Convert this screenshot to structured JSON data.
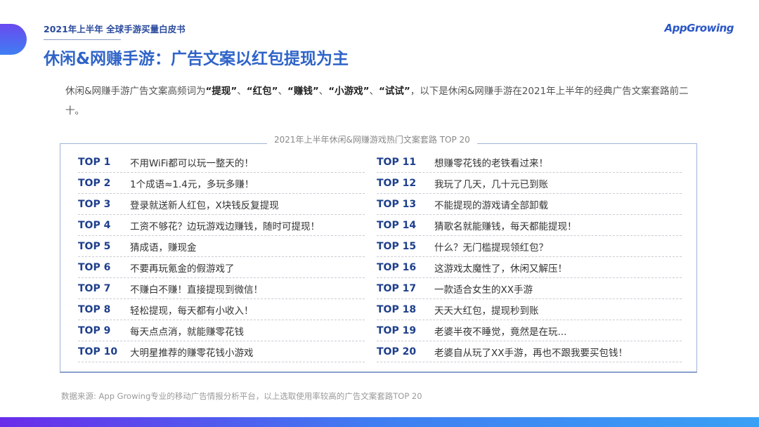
{
  "header": {
    "supertitle": "2021年上半年 全球手游买量白皮书",
    "logo": "AppGrowing",
    "title": "休闲&网赚手游：广告文案以红包提现为主"
  },
  "intro": {
    "prefix": "休闲&网赚手游广告文案高频词为",
    "keywords": [
      "“提现”",
      "“红包”",
      "“赚钱”",
      "“小游戏”",
      "“试试”"
    ],
    "separator": "、",
    "suffix": "，以下是休闲&网赚手游在2021年上半年的经典广告文案套路前二十。"
  },
  "table": {
    "title": "2021年上半年休闲&网赚游戏热门文案套路 TOP 20",
    "left": [
      {
        "rank": "TOP 1",
        "text": "不用WiFi都可以玩一整天的！"
      },
      {
        "rank": "TOP 2",
        "text": "1个成语≈1.4元，多玩多赚！"
      },
      {
        "rank": "TOP 3",
        "text": "登录就送新人红包，X块钱反复提现"
      },
      {
        "rank": "TOP 4",
        "text": "工资不够花？边玩游戏边赚钱，随时可提现！"
      },
      {
        "rank": "TOP 5",
        "text": "猜成语，赚现金"
      },
      {
        "rank": "TOP 6",
        "text": "不要再玩氪金的假游戏了"
      },
      {
        "rank": "TOP 7",
        "text": "不赚白不赚！直接提现到微信！"
      },
      {
        "rank": "TOP 8",
        "text": "轻松提现，每天都有小收入！"
      },
      {
        "rank": "TOP 9",
        "text": "每天点点消，就能赚零花钱"
      },
      {
        "rank": "TOP 10",
        "text": "大明星推荐的赚零花钱小游戏"
      }
    ],
    "right": [
      {
        "rank": "TOP 11",
        "text": "想赚零花钱的老铁看过来！"
      },
      {
        "rank": "TOP 12",
        "text": "我玩了几天，几十元已到账"
      },
      {
        "rank": "TOP 13",
        "text": "不能提现的游戏请全部卸载"
      },
      {
        "rank": "TOP 14",
        "text": "猜歌名就能赚钱，每天都能提现！"
      },
      {
        "rank": "TOP 15",
        "text": "什么？无门槛提现领红包？"
      },
      {
        "rank": "TOP 16",
        "text": "这游戏太魔性了，休闲又解压！"
      },
      {
        "rank": "TOP 17",
        "text": "一款适合女生的XX手游"
      },
      {
        "rank": "TOP 18",
        "text": "天天大红包，提现秒到账"
      },
      {
        "rank": "TOP 19",
        "text": "老婆半夜不睡觉，竟然是在玩..."
      },
      {
        "rank": "TOP 20",
        "text": "老婆自从玩了XX手游，再也不跟我要买包钱！"
      }
    ]
  },
  "footer": {
    "source": "数据来源: App Growing专业的移动广告情报分析平台，以上选取使用率较高的广告文案套路TOP 20"
  },
  "colors": {
    "accent": "#2f64c8",
    "rank": "#1e3f8c"
  }
}
